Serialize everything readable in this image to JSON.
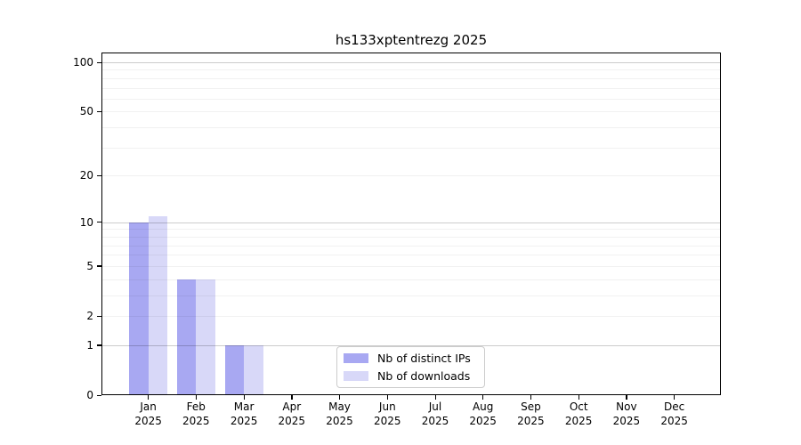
{
  "title": "hs133xptentrezg 2025",
  "chart_data": {
    "type": "bar",
    "title": "hs133xptentrezg 2025",
    "year": "2025",
    "categories": [
      "Jan",
      "Feb",
      "Mar",
      "Apr",
      "May",
      "Jun",
      "Jul",
      "Aug",
      "Sep",
      "Oct",
      "Nov",
      "Dec"
    ],
    "series": [
      {
        "name": "Nb of distinct IPs",
        "color": "#a8a8f2",
        "values": [
          10,
          4,
          1,
          0,
          0,
          0,
          0,
          0,
          0,
          0,
          0,
          0
        ]
      },
      {
        "name": "Nb of downloads",
        "color": "#d8d8f8",
        "values": [
          11,
          4,
          1,
          0,
          0,
          0,
          0,
          0,
          0,
          0,
          0,
          0
        ]
      }
    ],
    "xlabel": "",
    "ylabel": "",
    "yscale": "log10(1+x)",
    "ytick_labels": [
      "0",
      "1",
      "2",
      "5",
      "10",
      "20",
      "50",
      "100"
    ],
    "ytick_values": [
      0,
      1,
      2,
      5,
      10,
      20,
      50,
      100
    ],
    "major_gridline_values": [
      1,
      10,
      100
    ],
    "minor_gridline_values": [
      2,
      3,
      4,
      5,
      6,
      7,
      8,
      9,
      20,
      30,
      40,
      50,
      60,
      70,
      80,
      90
    ],
    "ylim": [
      0,
      115
    ],
    "grid": true,
    "legend_position": "inside-bottom-center"
  }
}
